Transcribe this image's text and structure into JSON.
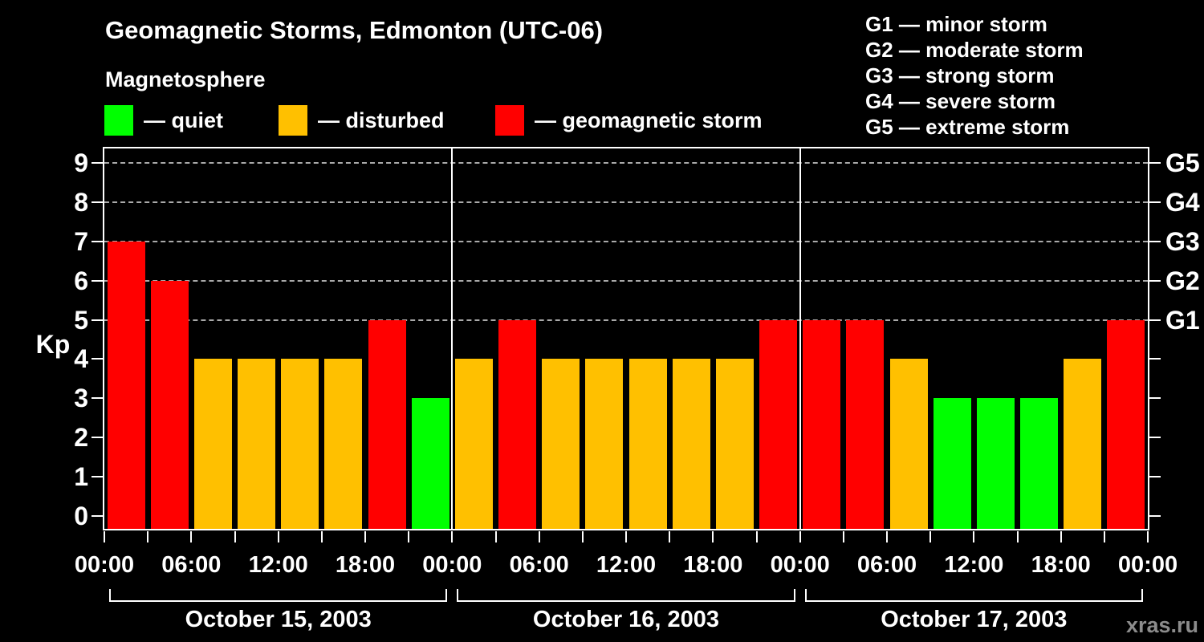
{
  "title": "Geomagnetic Storms, Edmonton (UTC-06)",
  "subtitle": "Magnetosphere",
  "ylabel": "Kp",
  "watermark": "xras.ru",
  "colors": {
    "background": "#000000",
    "axis": "#ffffff",
    "grid": "#aaaaaa",
    "quiet": "#00ff00",
    "disturbed": "#ffc000",
    "storm": "#ff0000",
    "watermark": "#8c8c8c"
  },
  "legend": [
    {
      "key": "quiet",
      "label": "— quiet"
    },
    {
      "key": "disturbed",
      "label": "— disturbed"
    },
    {
      "key": "storm",
      "label": "— geomagnetic storm"
    }
  ],
  "g_legend": [
    "G1 — minor storm",
    "G2 — moderate storm",
    "G3 — strong storm",
    "G4 — severe storm",
    "G5 — extreme storm"
  ],
  "chart_data": {
    "type": "bar",
    "title": "Geomagnetic Storms, Edmonton (UTC-06)",
    "ylabel": "Kp",
    "ylim": [
      0,
      9.4
    ],
    "yticks": [
      0,
      1,
      2,
      3,
      4,
      5,
      6,
      7,
      8,
      9
    ],
    "gridlines_at_kp": [
      5,
      6,
      7,
      8,
      9
    ],
    "right_axis": [
      {
        "kp": 5,
        "label": "G1"
      },
      {
        "kp": 6,
        "label": "G2"
      },
      {
        "kp": 7,
        "label": "G3"
      },
      {
        "kp": 8,
        "label": "G4"
      },
      {
        "kp": 9,
        "label": "G5"
      }
    ],
    "x_tick_interval_hours": 3,
    "x_time_labels": [
      "00:00",
      "06:00",
      "12:00",
      "18:00",
      "00:00",
      "06:00",
      "12:00",
      "18:00",
      "00:00",
      "06:00",
      "12:00",
      "18:00",
      "00:00"
    ],
    "color_rule": {
      "quiet_max_kp": 3,
      "disturbed_max_kp": 4
    },
    "days": [
      {
        "date": "October 15, 2003",
        "kp_values": [
          7,
          6,
          4,
          4,
          4,
          4,
          5,
          3
        ]
      },
      {
        "date": "October 16, 2003",
        "kp_values": [
          4,
          5,
          4,
          4,
          4,
          4,
          4,
          5
        ]
      },
      {
        "date": "October 17, 2003",
        "kp_values": [
          5,
          5,
          4,
          3,
          3,
          3,
          4,
          5
        ]
      }
    ]
  }
}
